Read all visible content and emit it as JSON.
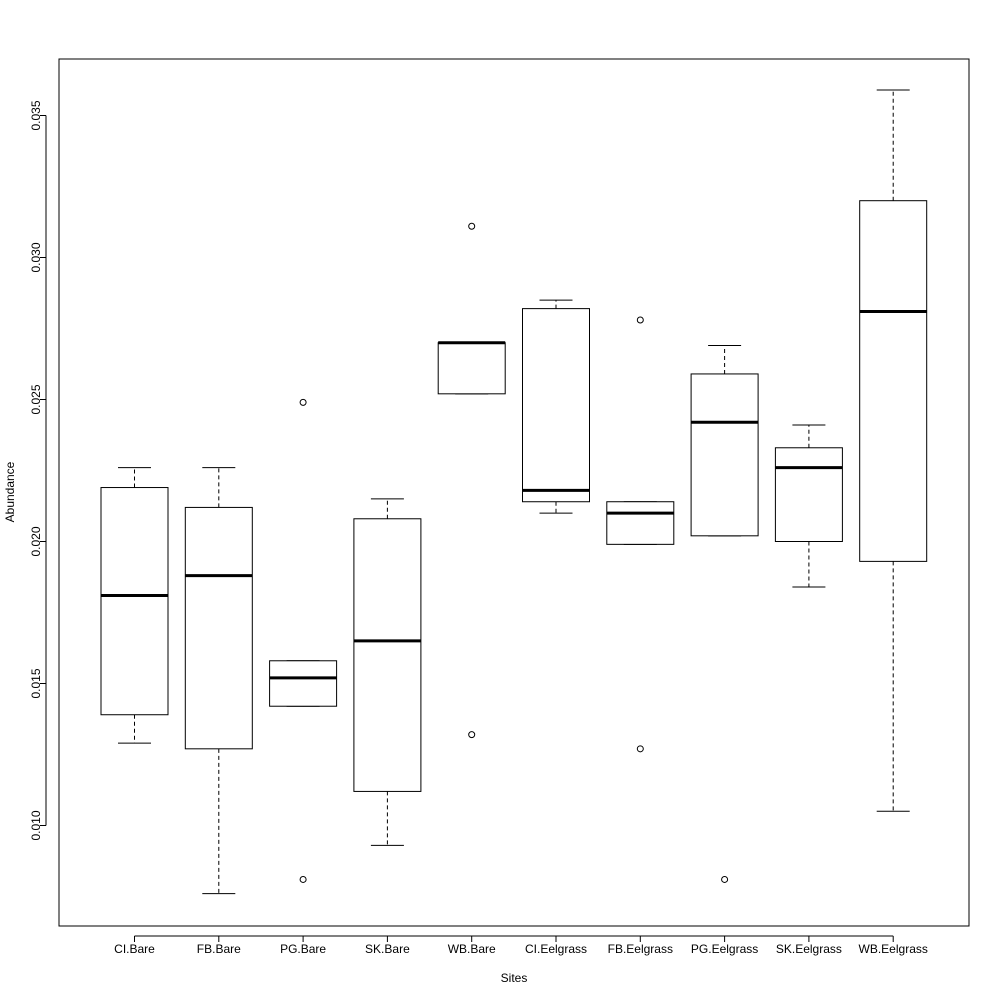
{
  "chart_data": {
    "type": "box",
    "title": "",
    "xlabel": "Sites",
    "ylabel": "Abundance",
    "ylim": [
      0.0065,
      0.037
    ],
    "yticks": [
      "0.010",
      "0.015",
      "0.020",
      "0.025",
      "0.030",
      "0.035"
    ],
    "grid": false,
    "categories": [
      "CI.Bare",
      "FB.Bare",
      "PG.Bare",
      "SK.Bare",
      "WB.Bare",
      "CI.Eelgrass",
      "FB.Eelgrass",
      "PG.Eelgrass",
      "SK.Eelgrass",
      "WB.Eelgrass"
    ],
    "boxes": [
      {
        "whisker_low": 0.0129,
        "q1": 0.0139,
        "median": 0.0181,
        "q3": 0.0219,
        "whisker_high": 0.0226,
        "outliers": []
      },
      {
        "whisker_low": 0.0076,
        "q1": 0.0127,
        "median": 0.0188,
        "q3": 0.0212,
        "whisker_high": 0.0226,
        "outliers": []
      },
      {
        "whisker_low": 0.0142,
        "q1": 0.0142,
        "median": 0.0152,
        "q3": 0.0158,
        "whisker_high": 0.0158,
        "outliers": [
          0.0249,
          0.0081
        ]
      },
      {
        "whisker_low": 0.0093,
        "q1": 0.0112,
        "median": 0.0165,
        "q3": 0.0208,
        "whisker_high": 0.0215,
        "outliers": []
      },
      {
        "whisker_low": 0.0252,
        "q1": 0.0252,
        "median": 0.027,
        "q3": 0.027,
        "whisker_high": 0.027,
        "outliers": [
          0.0311,
          0.0132
        ]
      },
      {
        "whisker_low": 0.021,
        "q1": 0.0214,
        "median": 0.0218,
        "q3": 0.0282,
        "whisker_high": 0.0285,
        "outliers": []
      },
      {
        "whisker_low": 0.0199,
        "q1": 0.0199,
        "median": 0.021,
        "q3": 0.0214,
        "whisker_high": 0.0214,
        "outliers": [
          0.0278,
          0.0127
        ]
      },
      {
        "whisker_low": 0.0202,
        "q1": 0.0202,
        "median": 0.0242,
        "q3": 0.0259,
        "whisker_high": 0.0269,
        "outliers": [
          0.0081
        ]
      },
      {
        "whisker_low": 0.0184,
        "q1": 0.02,
        "median": 0.0226,
        "q3": 0.0233,
        "whisker_high": 0.0241,
        "outliers": []
      },
      {
        "whisker_low": 0.0105,
        "q1": 0.0193,
        "median": 0.0281,
        "q3": 0.032,
        "whisker_high": 0.0359,
        "outliers": []
      }
    ]
  }
}
